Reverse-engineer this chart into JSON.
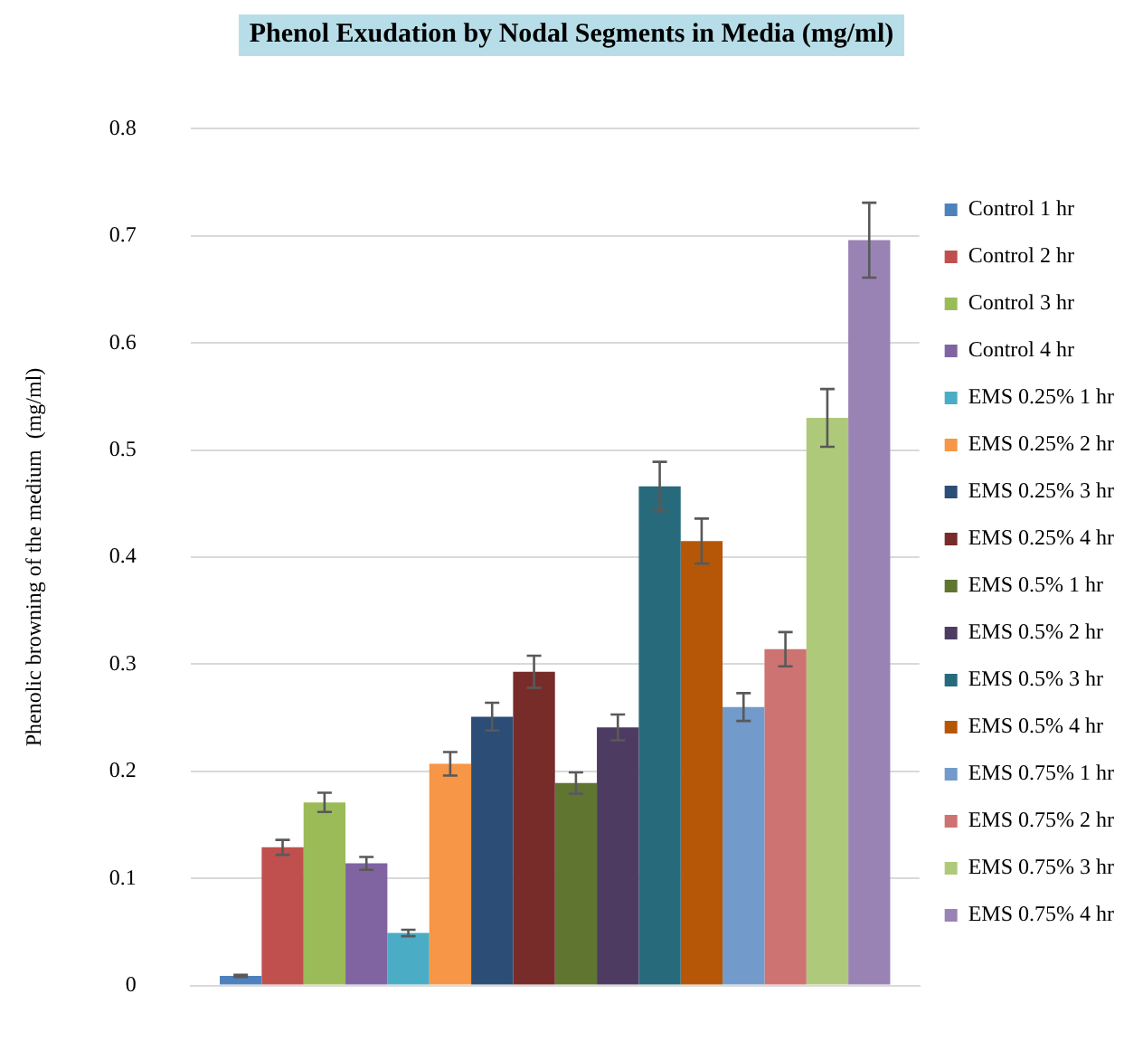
{
  "chart_data": {
    "type": "bar",
    "title": "Phenol Exudation by Nodal Segments in Media (mg/ml)",
    "ylabel": "Phenolic browning of the medium  (mg/ml)",
    "categories": [
      null
    ],
    "ylim": [
      0,
      0.8
    ],
    "yticks": [
      0,
      0.1,
      0.2,
      0.3,
      0.4,
      0.5,
      0.6,
      0.7,
      0.8
    ],
    "grid": "y",
    "legend": "right",
    "series": [
      {
        "name": "Control 1 hr",
        "color": "#4f81bd",
        "values": [
          0.009
        ],
        "errors": [
          0.001
        ]
      },
      {
        "name": "Control 2 hr",
        "color": "#c0504d",
        "values": [
          0.129
        ],
        "errors": [
          0.007
        ]
      },
      {
        "name": "Control 3 hr",
        "color": "#9bbb59",
        "values": [
          0.171
        ],
        "errors": [
          0.009
        ]
      },
      {
        "name": "Control 4 hr",
        "color": "#8064a2",
        "values": [
          0.114
        ],
        "errors": [
          0.006
        ]
      },
      {
        "name": "EMS 0.25% 1 hr",
        "color": "#4bacc6",
        "values": [
          0.049
        ],
        "errors": [
          0.003
        ]
      },
      {
        "name": "EMS 0.25% 2 hr",
        "color": "#f79646",
        "values": [
          0.207
        ],
        "errors": [
          0.011
        ]
      },
      {
        "name": "EMS 0.25% 3 hr",
        "color": "#2c4d75",
        "values": [
          0.251
        ],
        "errors": [
          0.013
        ]
      },
      {
        "name": "EMS 0.25% 4 hr",
        "color": "#772c2a",
        "values": [
          0.293
        ],
        "errors": [
          0.015
        ]
      },
      {
        "name": "EMS 0.5% 1 hr",
        "color": "#5f7530",
        "values": [
          0.189
        ],
        "errors": [
          0.01
        ]
      },
      {
        "name": "EMS 0.5% 2 hr",
        "color": "#4d3b62",
        "values": [
          0.241
        ],
        "errors": [
          0.012
        ]
      },
      {
        "name": "EMS 0.5% 3 hr",
        "color": "#276a7c",
        "values": [
          0.466
        ],
        "errors": [
          0.023
        ]
      },
      {
        "name": "EMS 0.5% 4 hr",
        "color": "#b65708",
        "values": [
          0.415
        ],
        "errors": [
          0.021
        ]
      },
      {
        "name": "EMS 0.75% 1 hr",
        "color": "#729aca",
        "values": [
          0.26
        ],
        "errors": [
          0.013
        ]
      },
      {
        "name": "EMS 0.75% 2 hr",
        "color": "#cd7371",
        "values": [
          0.314
        ],
        "errors": [
          0.016
        ]
      },
      {
        "name": "EMS 0.75% 3 hr",
        "color": "#afc97a",
        "values": [
          0.53
        ],
        "errors": [
          0.027
        ]
      },
      {
        "name": "EMS 0.75% 4 hr",
        "color": "#9983b5",
        "values": [
          0.696
        ],
        "errors": [
          0.035
        ]
      }
    ]
  }
}
